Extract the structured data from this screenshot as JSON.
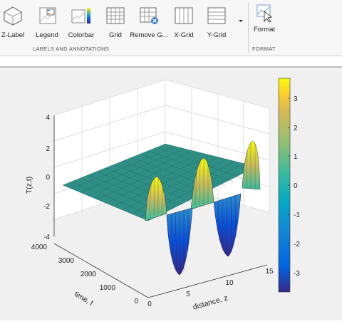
{
  "ribbon": {
    "buttons": [
      {
        "label": "Z-Label"
      },
      {
        "label": "Legend"
      },
      {
        "label": "Colorbar"
      },
      {
        "label": "Grid"
      },
      {
        "label": "Remove G..."
      },
      {
        "label": "X-Grid"
      },
      {
        "label": "Y-Grid"
      }
    ],
    "group_label": "LABELS AND ANNOTATIONS",
    "format": {
      "label": "Format",
      "group_label": "FORMAT"
    }
  },
  "plot": {
    "zlabel": "T(z,t)",
    "ylabel": "time, t",
    "xlabel": "distance, z",
    "zticks": [
      "4",
      "2",
      "0",
      "-2",
      "-4"
    ],
    "yticks": [
      "4000",
      "3000",
      "2000",
      "1000",
      "0"
    ],
    "xticks": [
      "0",
      "5",
      "10",
      "15"
    ],
    "colorbar_ticks": [
      "3",
      "2",
      "1",
      "0",
      "-1",
      "-2",
      "-3"
    ]
  },
  "chart_data": {
    "type": "surface",
    "xlabel": "distance, z",
    "ylabel": "time, t",
    "zlabel": "T(z,t)",
    "xlim": [
      0,
      15
    ],
    "ylim": [
      0,
      4000
    ],
    "zlim": [
      -4,
      4
    ],
    "grid": true,
    "colormap": "parula",
    "colorbar": {
      "range": [
        -3.8,
        3.8
      ],
      "ticks": [
        3,
        2,
        1,
        0,
        -1,
        -2,
        -3
      ],
      "placement": "right"
    },
    "description_values": {
      "flat_region_value": 0,
      "oscillation_peak": 3.8,
      "oscillation_trough": -3.8
    }
  }
}
